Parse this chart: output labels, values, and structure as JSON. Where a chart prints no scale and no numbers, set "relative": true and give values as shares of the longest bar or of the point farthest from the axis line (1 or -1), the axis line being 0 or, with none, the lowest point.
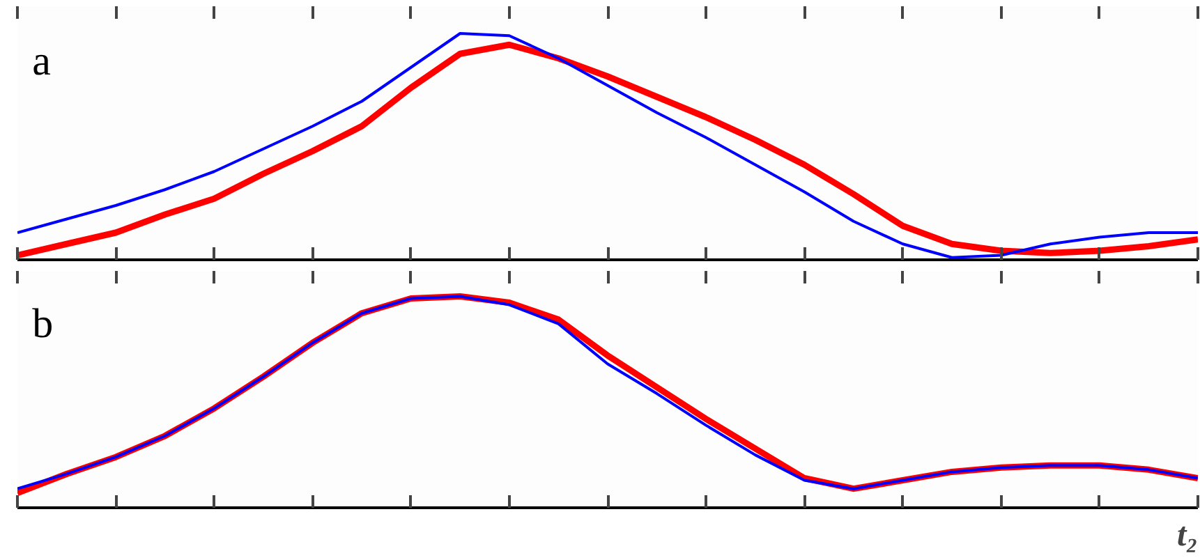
{
  "chart_data": [
    {
      "type": "line",
      "title": "a",
      "relative": true,
      "tick_labels": false,
      "grid": false,
      "marker": "none",
      "line_style": "solid",
      "categories": [
        null,
        null,
        null,
        null,
        null,
        null,
        null,
        null,
        null,
        null,
        null,
        null,
        null,
        null,
        null,
        null,
        null,
        null,
        null,
        null,
        null,
        null,
        null,
        null,
        null
      ],
      "series": [
        {
          "color": "#ff0000",
          "values": [
            0.02,
            0.07,
            0.12,
            0.2,
            0.27,
            0.38,
            0.48,
            0.59,
            0.76,
            0.91,
            0.95,
            0.89,
            0.81,
            0.72,
            0.63,
            0.53,
            0.42,
            0.29,
            0.15,
            0.07,
            0.04,
            0.03,
            0.04,
            0.06,
            0.09
          ]
        },
        {
          "color": "#0000ff",
          "values": [
            0.12,
            0.18,
            0.24,
            0.31,
            0.39,
            0.49,
            0.59,
            0.7,
            0.85,
            1.0,
            0.99,
            0.89,
            0.77,
            0.65,
            0.54,
            0.42,
            0.3,
            0.17,
            0.07,
            0.01,
            0.02,
            0.07,
            0.1,
            0.12,
            0.12
          ]
        }
      ]
    },
    {
      "type": "line",
      "title": "b",
      "xlabel": "t₂",
      "relative": true,
      "tick_labels": false,
      "grid": false,
      "marker": "none",
      "line_style": "solid",
      "categories": [
        null,
        null,
        null,
        null,
        null,
        null,
        null,
        null,
        null,
        null,
        null,
        null,
        null,
        null,
        null,
        null,
        null,
        null,
        null,
        null,
        null,
        null,
        null,
        null,
        null
      ],
      "series": [
        {
          "color": "#ff0000",
          "values": [
            0.07,
            0.16,
            0.24,
            0.34,
            0.47,
            0.62,
            0.78,
            0.92,
            0.99,
            1.0,
            0.97,
            0.89,
            0.72,
            0.57,
            0.42,
            0.28,
            0.14,
            0.09,
            0.13,
            0.17,
            0.19,
            0.2,
            0.2,
            0.18,
            0.14
          ]
        },
        {
          "color": "#0000ff",
          "values": [
            0.09,
            0.16,
            0.24,
            0.34,
            0.47,
            0.62,
            0.78,
            0.92,
            0.99,
            1.0,
            0.96,
            0.87,
            0.68,
            0.54,
            0.39,
            0.25,
            0.13,
            0.09,
            0.13,
            0.17,
            0.19,
            0.2,
            0.2,
            0.18,
            0.14
          ]
        }
      ]
    }
  ]
}
